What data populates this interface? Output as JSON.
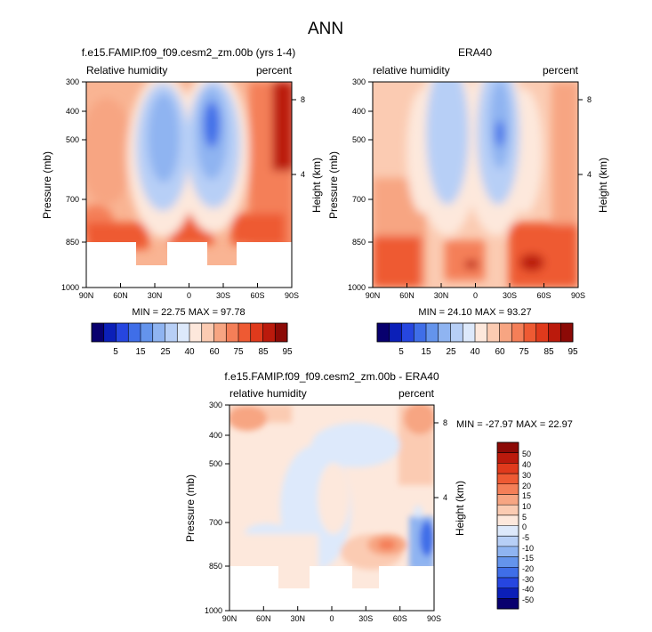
{
  "main_title": "ANN",
  "chart_data": [
    {
      "type": "heatmap",
      "id": "model",
      "title": "f.e15.FAMIP.f09_f09.cesm2_zm.00b (yrs 1-4)",
      "left_label": "Relative humidity",
      "right_label": "percent",
      "ylabel": "Pressure (mb)",
      "ylabel_right": "Height (km)",
      "x_ticks": [
        "90N",
        "60N",
        "30N",
        "0",
        "30S",
        "60S",
        "90S"
      ],
      "y_ticks": [
        "300",
        "400",
        "500",
        "700",
        "850",
        "1000"
      ],
      "y_right_ticks": [
        "8",
        "4"
      ],
      "stats": "MIN =  22.75   MAX =  97.78",
      "min": 22.75,
      "max": 97.78,
      "colorbar_labels": [
        "5",
        "15",
        "25",
        "40",
        "60",
        "75",
        "85",
        "95"
      ]
    },
    {
      "type": "heatmap",
      "id": "obs",
      "title": "ERA40",
      "left_label": "relative humidity",
      "right_label": "percent",
      "ylabel": "Pressure (mb)",
      "ylabel_right": "Height (km)",
      "x_ticks": [
        "90N",
        "60N",
        "30N",
        "0",
        "30S",
        "60S",
        "90S"
      ],
      "y_ticks": [
        "300",
        "400",
        "500",
        "700",
        "850",
        "1000"
      ],
      "y_right_ticks": [
        "8",
        "4"
      ],
      "stats": "MIN =  24.10   MAX =  93.27",
      "min": 24.1,
      "max": 93.27,
      "colorbar_labels": [
        "5",
        "15",
        "25",
        "40",
        "60",
        "75",
        "85",
        "95"
      ]
    },
    {
      "type": "heatmap",
      "id": "diff",
      "title": "f.e15.FAMIP.f09_f09.cesm2_zm.00b - ERA40",
      "left_label": "relative humidity",
      "right_label": "percent",
      "ylabel": "Pressure (mb)",
      "ylabel_right": "Height (km)",
      "x_ticks": [
        "90N",
        "60N",
        "30N",
        "0",
        "30S",
        "60S",
        "90S"
      ],
      "y_ticks": [
        "300",
        "400",
        "500",
        "700",
        "850",
        "1000"
      ],
      "y_right_ticks": [
        "8",
        "4"
      ],
      "stats": "MIN = -27.97   MAX =  22.97",
      "min": -27.97,
      "max": 22.97,
      "colorbar_labels": [
        "50",
        "40",
        "30",
        "20",
        "15",
        "10",
        "5",
        "0",
        "-5",
        "-10",
        "-15",
        "-20",
        "-30",
        "-40",
        "-50"
      ]
    }
  ],
  "colors": {
    "rh_scale": [
      "#08006e",
      "#0b1fb8",
      "#2646e0",
      "#3f6ee8",
      "#6494ec",
      "#8fb4f1",
      "#b7cff6",
      "#dde9fb",
      "#fde8dc",
      "#fbcbb2",
      "#f7a582",
      "#f47f58",
      "#ee5a33",
      "#e03a1c",
      "#bb1a0c",
      "#8c0a06"
    ],
    "diff_scale": [
      "#08006e",
      "#0b1fb8",
      "#2646e0",
      "#3f6ee8",
      "#6494ec",
      "#8fb4f1",
      "#b7cff6",
      "#dde9fb",
      "#fde8dc",
      "#fbcbb2",
      "#f7a582",
      "#f47f58",
      "#ee5a33",
      "#e03a1c",
      "#bb1a0c",
      "#8c0a06"
    ]
  }
}
